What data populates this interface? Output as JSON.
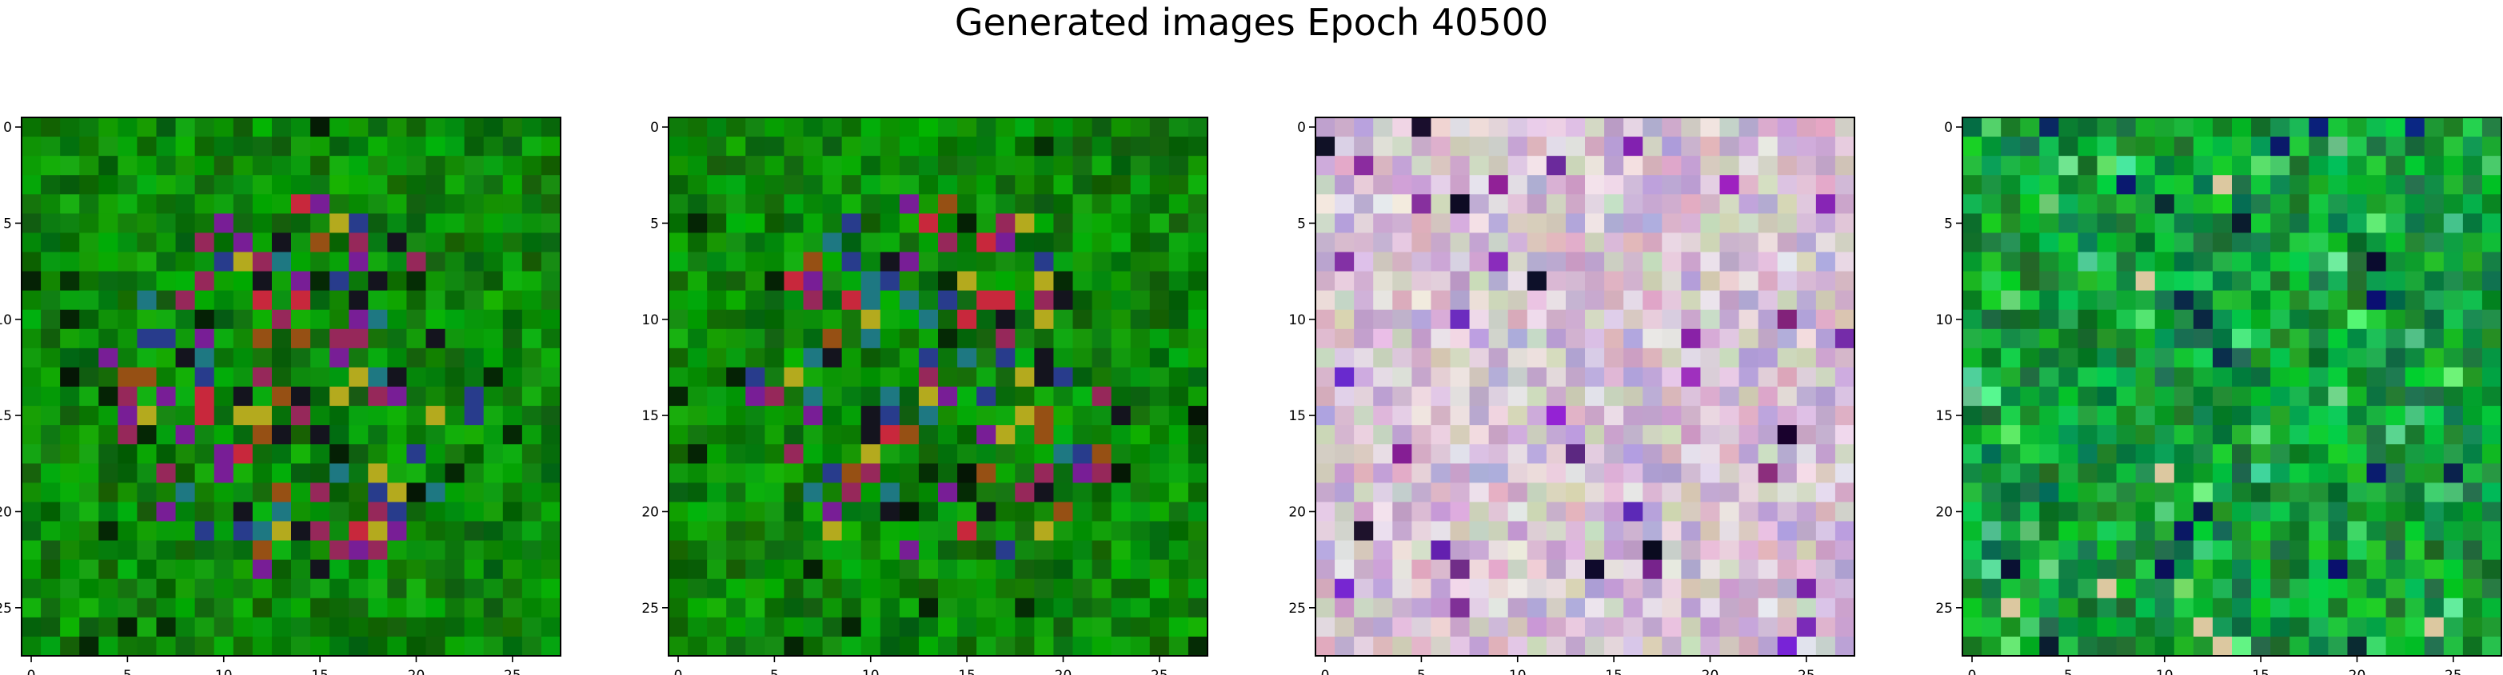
{
  "figure": {
    "title": "Generated images Epoch 40500"
  },
  "chart_data": [
    {
      "type": "heatmap",
      "grid_size": [
        28,
        28
      ],
      "xlim": [
        -0.5,
        27.5
      ],
      "ylim": [
        27.5,
        -0.5
      ],
      "x_ticks": [
        0,
        5,
        10,
        15,
        20,
        25
      ],
      "y_ticks": [
        0,
        5,
        10,
        15,
        20,
        25
      ],
      "x_tick_labels": [
        "0",
        "5",
        "10",
        "15",
        "20",
        "25"
      ],
      "y_tick_labels": [
        "0",
        "5",
        "10",
        "15",
        "20",
        "25"
      ],
      "palette": "green",
      "seed": 11
    },
    {
      "type": "heatmap",
      "grid_size": [
        28,
        28
      ],
      "xlim": [
        -0.5,
        27.5
      ],
      "ylim": [
        27.5,
        -0.5
      ],
      "x_ticks": [
        0,
        5,
        10,
        15,
        20,
        25
      ],
      "y_ticks": [
        0,
        5,
        10,
        15,
        20,
        25
      ],
      "x_tick_labels": [
        "0",
        "5",
        "10",
        "15",
        "20",
        "25"
      ],
      "y_tick_labels": [
        "0",
        "5",
        "10",
        "15",
        "20",
        "25"
      ],
      "palette": "green",
      "seed": 23
    },
    {
      "type": "heatmap",
      "grid_size": [
        28,
        28
      ],
      "xlim": [
        -0.5,
        27.5
      ],
      "ylim": [
        27.5,
        -0.5
      ],
      "x_ticks": [
        0,
        5,
        10,
        15,
        20,
        25
      ],
      "y_ticks": [
        0,
        5,
        10,
        15,
        20,
        25
      ],
      "x_tick_labels": [
        "0",
        "5",
        "10",
        "15",
        "20",
        "25"
      ],
      "y_tick_labels": [
        "0",
        "5",
        "10",
        "15",
        "20",
        "25"
      ],
      "palette": "pastel",
      "seed": 37
    },
    {
      "type": "heatmap",
      "grid_size": [
        28,
        28
      ],
      "xlim": [
        -0.5,
        27.5
      ],
      "ylim": [
        27.5,
        -0.5
      ],
      "x_ticks": [
        0,
        5,
        10,
        15,
        20,
        25
      ],
      "y_ticks": [
        0,
        5,
        10,
        15,
        20,
        25
      ],
      "x_tick_labels": [
        "0",
        "5",
        "10",
        "15",
        "20",
        "25"
      ],
      "y_tick_labels": [
        "0",
        "5",
        "10",
        "15",
        "20",
        "25"
      ],
      "palette": "teal-green",
      "seed": 53
    }
  ]
}
